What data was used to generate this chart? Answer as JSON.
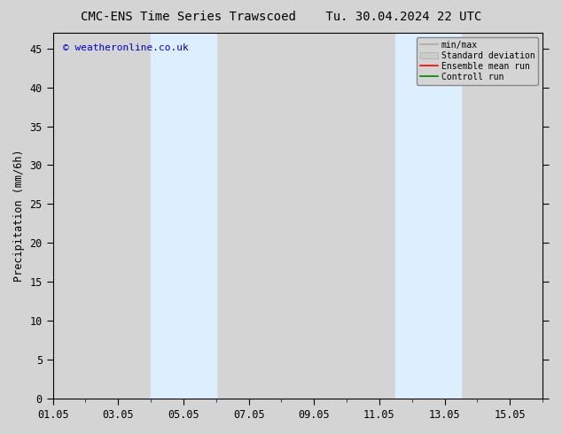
{
  "title_left": "CMC-ENS Time Series Trawscoed",
  "title_right": "Tu. 30.04.2024 22 UTC",
  "ylabel": "Precipitation (mm/6h)",
  "watermark": "© weatheronline.co.uk",
  "ylim": [
    0,
    47
  ],
  "yticks": [
    0,
    5,
    10,
    15,
    20,
    25,
    30,
    35,
    40,
    45
  ],
  "x_start": "2024-05-01",
  "x_end": "2024-05-16",
  "xtick_labels": [
    "01.05",
    "03.05",
    "05.05",
    "07.05",
    "09.05",
    "11.05",
    "13.05",
    "15.05"
  ],
  "xtick_positions_days": [
    0,
    2,
    4,
    6,
    8,
    10,
    12,
    14
  ],
  "shade_regions": [
    {
      "start_day": 3.0,
      "end_day": 5.0,
      "color": "#ddeeff"
    },
    {
      "start_day": 10.5,
      "end_day": 12.5,
      "color": "#ddeeff"
    }
  ],
  "bg_color": "#d4d4d4",
  "plot_bg_color": "#d4d4d4",
  "border_color": "#000000",
  "legend_items": [
    {
      "label": "min/max",
      "type": "line",
      "color": "#aaaaaa"
    },
    {
      "label": "Standard deviation",
      "type": "line",
      "color": "#cccccc"
    },
    {
      "label": "Ensemble mean run",
      "type": "line",
      "color": "#ff0000"
    },
    {
      "label": "Controll run",
      "type": "line",
      "color": "#008000"
    }
  ],
  "title_fontsize": 10,
  "axis_fontsize": 8.5,
  "watermark_color": "#0000cc",
  "grid_color": "#bbbbbb"
}
